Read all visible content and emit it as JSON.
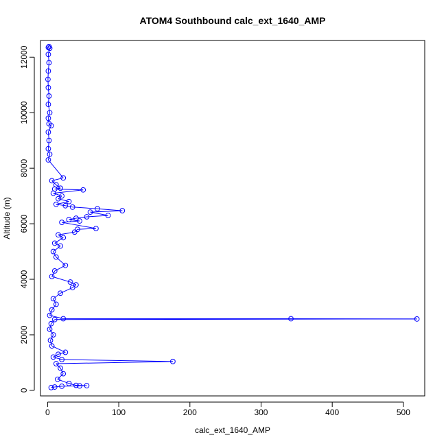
{
  "chart_data": {
    "type": "scatter",
    "title": "ATOM4 Southbound calc_ext_1640_AMP",
    "xlabel": "calc_ext_1640_AMP",
    "ylabel": "Altitude (m)",
    "xlim": [
      -10,
      530
    ],
    "ylim": [
      -200,
      12600
    ],
    "xticks": [
      0,
      100,
      200,
      300,
      400,
      500
    ],
    "yticks": [
      0,
      2000,
      4000,
      6000,
      8000,
      10000,
      12000
    ],
    "grid": false,
    "legend": "none",
    "marker": "open-circle",
    "connected": true,
    "series": [
      {
        "name": "",
        "color": "#0000ff",
        "points": [
          [
            2,
            12380
          ],
          [
            1,
            12350
          ],
          [
            3,
            12320
          ],
          [
            1,
            12100
          ],
          [
            2,
            11800
          ],
          [
            1,
            11500
          ],
          [
            0.5,
            11200
          ],
          [
            1,
            10900
          ],
          [
            2,
            10600
          ],
          [
            1,
            10300
          ],
          [
            3,
            10000
          ],
          [
            1,
            9800
          ],
          [
            2,
            9600
          ],
          [
            5,
            9530
          ],
          [
            1,
            9300
          ],
          [
            2,
            9000
          ],
          [
            1,
            8700
          ],
          [
            3,
            8500
          ],
          [
            1,
            8300
          ],
          [
            22,
            7650
          ],
          [
            6,
            7550
          ],
          [
            12,
            7400
          ],
          [
            18,
            7280
          ],
          [
            10,
            7250
          ],
          [
            50,
            7220
          ],
          [
            8,
            7100
          ],
          [
            20,
            7000
          ],
          [
            15,
            6900
          ],
          [
            30,
            6800
          ],
          [
            12,
            6700
          ],
          [
            25,
            6650
          ],
          [
            35,
            6600
          ],
          [
            70,
            6540
          ],
          [
            105,
            6470
          ],
          [
            60,
            6420
          ],
          [
            85,
            6300
          ],
          [
            55,
            6250
          ],
          [
            40,
            6200
          ],
          [
            30,
            6150
          ],
          [
            45,
            6100
          ],
          [
            20,
            6050
          ],
          [
            68,
            5830
          ],
          [
            42,
            5800
          ],
          [
            38,
            5700
          ],
          [
            15,
            5600
          ],
          [
            22,
            5500
          ],
          [
            10,
            5300
          ],
          [
            18,
            5200
          ],
          [
            8,
            5000
          ],
          [
            12,
            4800
          ],
          [
            25,
            4500
          ],
          [
            10,
            4300
          ],
          [
            6,
            4100
          ],
          [
            32,
            3900
          ],
          [
            40,
            3800
          ],
          [
            35,
            3700
          ],
          [
            18,
            3500
          ],
          [
            8,
            3300
          ],
          [
            12,
            3100
          ],
          [
            6,
            2900
          ],
          [
            3,
            2700
          ],
          [
            22,
            2580
          ],
          [
            342,
            2580
          ],
          [
            519,
            2570
          ],
          [
            10,
            2550
          ],
          [
            5,
            2400
          ],
          [
            3,
            2200
          ],
          [
            8,
            2000
          ],
          [
            4,
            1800
          ],
          [
            6,
            1600
          ],
          [
            25,
            1370
          ],
          [
            15,
            1300
          ],
          [
            8,
            1200
          ],
          [
            20,
            1110
          ],
          [
            176,
            1040
          ],
          [
            12,
            960
          ],
          [
            18,
            800
          ],
          [
            22,
            600
          ],
          [
            14,
            400
          ],
          [
            30,
            250
          ],
          [
            40,
            180
          ],
          [
            55,
            170
          ],
          [
            45,
            160
          ],
          [
            20,
            150
          ],
          [
            10,
            120
          ],
          [
            5,
            100
          ]
        ]
      }
    ]
  }
}
